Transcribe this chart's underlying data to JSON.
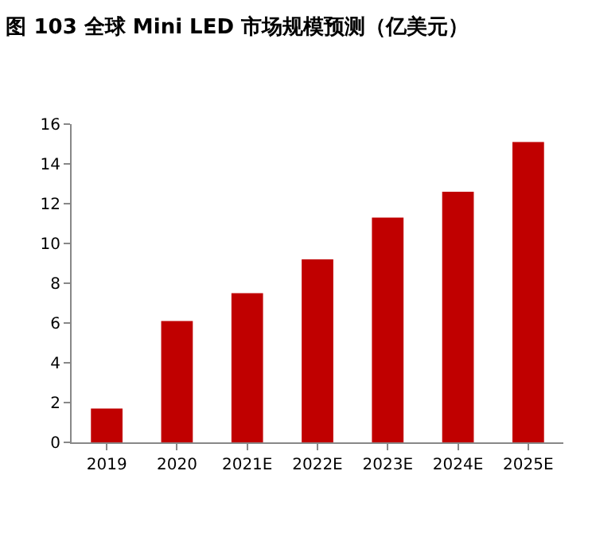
{
  "chart_data": {
    "type": "bar",
    "title": "图 103 全球 Mini LED 市场规模预测（亿美元）",
    "categories": [
      "2019",
      "2020",
      "2021E",
      "2022E",
      "2023E",
      "2024E",
      "2025E"
    ],
    "values": [
      1.7,
      6.1,
      7.5,
      9.2,
      11.3,
      12.6,
      15.1
    ],
    "color": "#c00000",
    "ylim": [
      0,
      16
    ],
    "yticks": [
      0,
      2,
      4,
      6,
      8,
      10,
      12,
      14,
      16
    ],
    "grid": false
  }
}
